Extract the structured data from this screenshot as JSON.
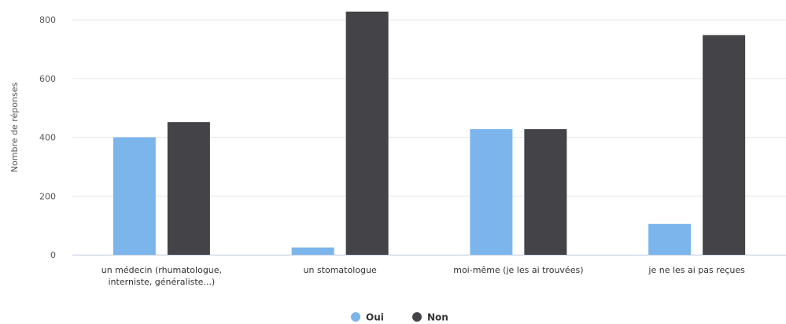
{
  "chart_data": {
    "type": "bar",
    "title": "",
    "xlabel": "",
    "ylabel": "Nombre de réponses",
    "ylim": [
      0,
      830
    ],
    "yticks": [
      0,
      200,
      400,
      600,
      800
    ],
    "grid": true,
    "legend_position": "bottom",
    "categories": [
      [
        "un médecin (rhumatologue,",
        "interniste, généraliste...)"
      ],
      [
        "un stomatologue"
      ],
      [
        "moi-même (je les ai trouvées)"
      ],
      [
        "je ne les ai pas reçues"
      ]
    ],
    "series": [
      {
        "name": "Oui",
        "color": "#7cb5ec",
        "values": [
          400,
          25,
          428,
          105
        ]
      },
      {
        "name": "Non",
        "color": "#434348",
        "values": [
          452,
          828,
          428,
          748
        ]
      }
    ]
  }
}
